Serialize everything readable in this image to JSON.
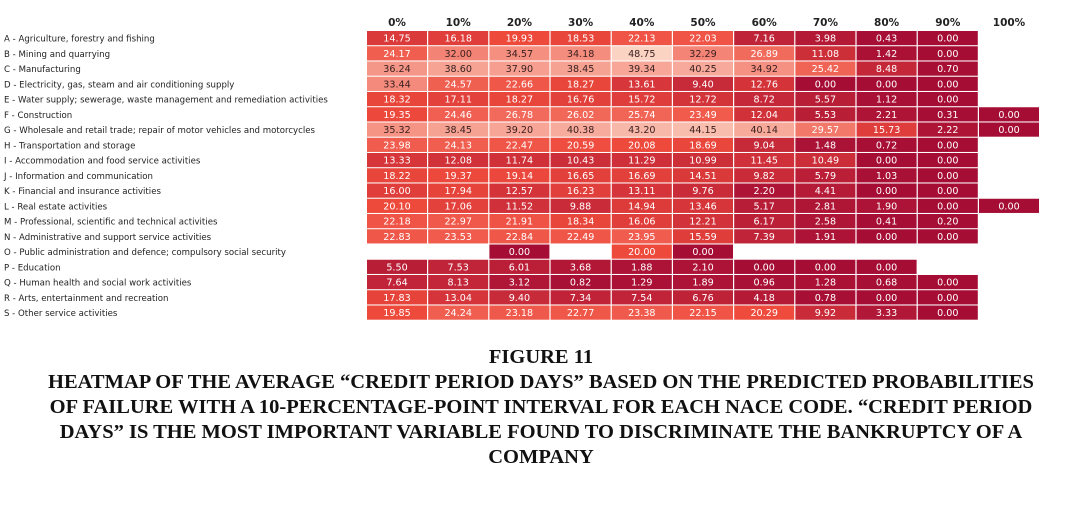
{
  "chart_data": {
    "type": "heatmap",
    "columns": [
      "0%",
      "10%",
      "20%",
      "30%",
      "40%",
      "50%",
      "60%",
      "70%",
      "80%",
      "90%",
      "100%"
    ],
    "rows": [
      "A - Agriculture, forestry and fishing",
      "B - Mining and quarrying",
      "C - Manufacturing",
      "D - Electricity, gas, steam and air conditioning supply",
      "E - Water supply; sewerage, waste management and remediation activities",
      "F - Construction",
      "G - Wholesale and retail trade; repair of motor vehicles and motorcycles",
      "H - Transportation and storage",
      "I - Accommodation and food service activities",
      "J - Information and communication",
      "K - Financial and insurance activities",
      "L - Real estate activities",
      "M - Professional, scientific and technical activities",
      "N - Administrative and support service activities",
      "O - Public administration and defence; compulsory social security",
      "P - Education",
      "Q - Human health and social work activities",
      "R - Arts, entertainment and recreation",
      "S - Other service activities"
    ],
    "values": [
      [
        "14.75",
        "16.18",
        "19.93",
        "18.53",
        "22.13",
        "22.03",
        "7.16",
        "3.98",
        "0.43",
        "0.00",
        null
      ],
      [
        "24.17",
        "32.00",
        "34.57",
        "34.18",
        "48.75",
        "32.29",
        "26.89",
        "11.08",
        "1.42",
        "0.00",
        null
      ],
      [
        "36.24",
        "38.60",
        "37.90",
        "38.45",
        "39.34",
        "40.25",
        "34.92",
        "25.42",
        "8.48",
        "0.70",
        null
      ],
      [
        "33.44",
        "24.57",
        "22.66",
        "18.27",
        "13.61",
        "9.40",
        "12.76",
        "0.00",
        "0.00",
        "0.00",
        null
      ],
      [
        "18.32",
        "17.11",
        "18.27",
        "16.76",
        "15.72",
        "12.72",
        "8.72",
        "5.57",
        "1.12",
        "0.00",
        null
      ],
      [
        "19.35",
        "24.46",
        "26.78",
        "26.02",
        "25.74",
        "23.49",
        "12.04",
        "5.53",
        "2.21",
        "0.31",
        "0.00"
      ],
      [
        "35.32",
        "38.45",
        "39.20",
        "40.38",
        "43.20",
        "44.15",
        "40.14",
        "29.57",
        "15.73",
        "2.22",
        "0.00"
      ],
      [
        "23.98",
        "24.13",
        "22.47",
        "20.59",
        "20.08",
        "18.69",
        "9.04",
        "1.48",
        "0.72",
        "0.00",
        null
      ],
      [
        "13.33",
        "12.08",
        "11.74",
        "10.43",
        "11.29",
        "10.99",
        "11.45",
        "10.49",
        "0.00",
        "0.00",
        null
      ],
      [
        "18.22",
        "19.37",
        "19.14",
        "16.65",
        "16.69",
        "14.51",
        "9.82",
        "5.79",
        "1.03",
        "0.00",
        null
      ],
      [
        "16.00",
        "17.94",
        "12.57",
        "16.23",
        "13.11",
        "9.76",
        "2.20",
        "4.41",
        "0.00",
        "0.00",
        null
      ],
      [
        "20.10",
        "17.06",
        "11.52",
        "9.88",
        "14.94",
        "13.46",
        "5.17",
        "2.81",
        "1.90",
        "0.00",
        "0.00"
      ],
      [
        "22.18",
        "22.97",
        "21.91",
        "18.34",
        "16.06",
        "12.21",
        "6.17",
        "2.58",
        "0.41",
        "0.20",
        null
      ],
      [
        "22.83",
        "23.53",
        "22.84",
        "22.49",
        "23.95",
        "15.59",
        "7.39",
        "1.91",
        "0.00",
        "0.00",
        null
      ],
      [
        null,
        null,
        "0.00",
        null,
        "20.00",
        "0.00",
        null,
        null,
        null,
        null,
        null
      ],
      [
        "5.50",
        "7.53",
        "6.01",
        "3.68",
        "1.88",
        "2.10",
        "0.00",
        "0.00",
        "0.00",
        null,
        null
      ],
      [
        "7.64",
        "8.13",
        "3.12",
        "0.82",
        "1.29",
        "1.89",
        "0.96",
        "1.28",
        "0.68",
        "0.00",
        null
      ],
      [
        "17.83",
        "13.04",
        "9.40",
        "7.34",
        "7.54",
        "6.76",
        "4.18",
        "0.78",
        "0.00",
        "0.00",
        null
      ],
      [
        "19.85",
        "24.24",
        "23.18",
        "22.77",
        "23.38",
        "22.15",
        "20.29",
        "9.92",
        "3.33",
        "0.00",
        null
      ]
    ],
    "color_scale": {
      "low": "#a50d35",
      "mid": "#ee4a3c",
      "high": "#fbd4c4",
      "domain": [
        0,
        20,
        49
      ]
    }
  },
  "caption": {
    "figure": "FIGURE 11",
    "text": "HEATMAP OF THE AVERAGE “CREDIT PERIOD DAYS” BASED ON THE PREDICTED PROBABILITIES OF FAILURE WITH A 10-PERCENTAGE-POINT INTERVAL FOR EACH NACE CODE. “CREDIT PERIOD DAYS” IS THE MOST IMPORTANT VARIABLE FOUND TO DISCRIMINATE THE BANKRUPTCY OF A COMPANY"
  }
}
